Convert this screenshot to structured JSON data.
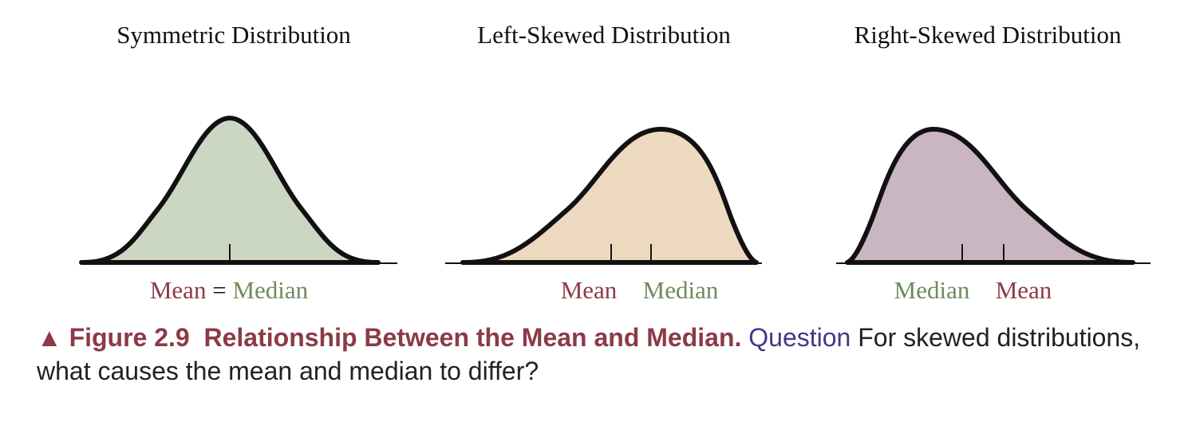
{
  "colors": {
    "mean": "#8c3a47",
    "median": "#6e8a5e",
    "symmetric_fill": "#cbd7c2",
    "left_fill": "#ecd9c0",
    "right_fill": "#c9b6c2",
    "curve": "#111111",
    "caption_fig": "#8c3a47",
    "caption_question": "#3f3a85",
    "caption_text": "#222222"
  },
  "panels": {
    "symmetric": {
      "title": "Symmetric Distribution",
      "mean_label": "Mean",
      "equals": "=",
      "median_label": "Median"
    },
    "left": {
      "title": "Left-Skewed Distribution",
      "mean_label": "Mean",
      "median_label": "Median"
    },
    "right": {
      "title": "Right-Skewed Distribution",
      "median_label": "Median",
      "mean_label": "Mean"
    }
  },
  "caption": {
    "marker": "▲",
    "figure_label": "Figure 2.9",
    "figure_title": "Relationship Between the Mean and Median.",
    "question_label": "Question",
    "question_text": "For skewed distributions, what causes the mean and median to differ?"
  }
}
